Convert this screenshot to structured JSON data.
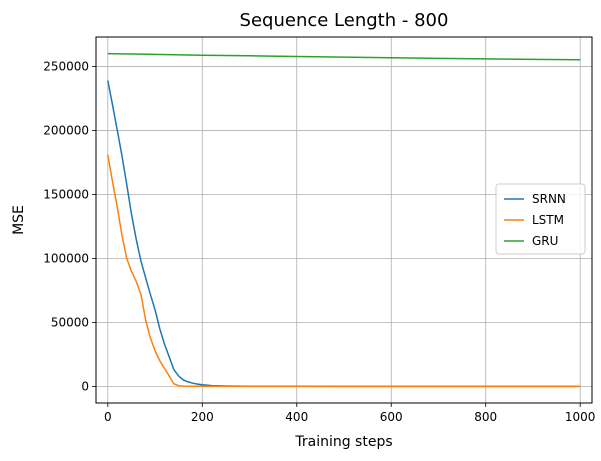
{
  "chart_data": {
    "type": "line",
    "title": "Sequence Length - 800",
    "xlabel": "Training steps",
    "ylabel": "MSE",
    "xlim": [
      -25,
      1025
    ],
    "ylim": [
      -13000,
      273000
    ],
    "x_ticks": [
      0,
      200,
      400,
      600,
      800,
      1000
    ],
    "x_tick_labels": [
      "0",
      "200",
      "400",
      "600",
      "800",
      "1000"
    ],
    "y_ticks": [
      0,
      50000,
      100000,
      150000,
      200000,
      250000
    ],
    "y_tick_labels": [
      "0",
      "50000",
      "100000",
      "150000",
      "200000",
      "250000"
    ],
    "grid": true,
    "legend_position": "center-right",
    "series": [
      {
        "name": "SRNN",
        "color": "#1f77b4",
        "x": [
          0,
          10,
          20,
          30,
          40,
          50,
          60,
          70,
          80,
          90,
          100,
          110,
          120,
          130,
          140,
          150,
          160,
          170,
          180,
          190,
          200,
          220,
          250,
          300,
          400,
          500,
          600,
          700,
          800,
          900,
          1000
        ],
        "y": [
          239000,
          220000,
          200000,
          180000,
          158000,
          135000,
          115000,
          98000,
          85000,
          72000,
          60000,
          45000,
          33000,
          23000,
          13000,
          8000,
          5000,
          3500,
          2500,
          1800,
          1200,
          600,
          250,
          80,
          20,
          10,
          5,
          5,
          5,
          5,
          5
        ]
      },
      {
        "name": "LSTM",
        "color": "#ff7f0e",
        "x": [
          0,
          10,
          20,
          30,
          40,
          50,
          60,
          70,
          80,
          90,
          100,
          110,
          120,
          130,
          140,
          150,
          160,
          180,
          200,
          300,
          400,
          500,
          600,
          700,
          800,
          900,
          1000
        ],
        "y": [
          181000,
          160000,
          140000,
          118000,
          100000,
          90000,
          82000,
          72000,
          52000,
          38000,
          28000,
          20000,
          14000,
          8000,
          2000,
          500,
          200,
          50,
          20,
          5,
          5,
          5,
          5,
          5,
          5,
          5,
          5
        ]
      },
      {
        "name": "GRU",
        "color": "#2ca02c",
        "x": [
          0,
          100,
          200,
          300,
          400,
          500,
          600,
          700,
          800,
          900,
          1000
        ],
        "y": [
          260000,
          259400,
          258800,
          258300,
          257800,
          257300,
          256800,
          256300,
          255900,
          255500,
          255200
        ]
      }
    ]
  }
}
